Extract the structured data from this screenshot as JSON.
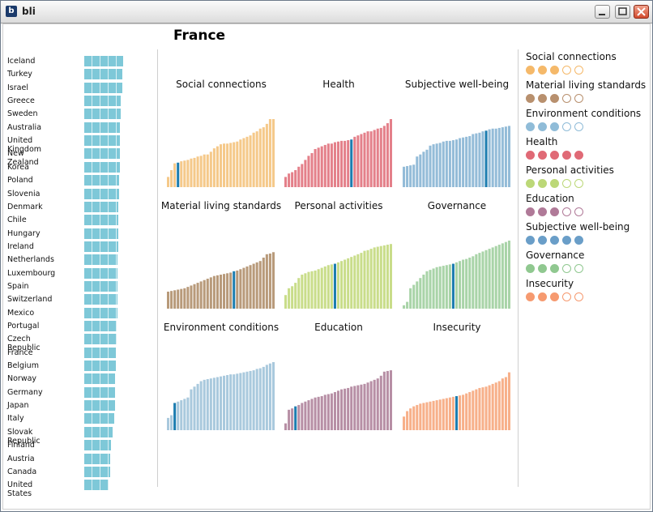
{
  "window": {
    "title": "bli",
    "buttons": [
      "minimize",
      "maximize",
      "close"
    ]
  },
  "selected_country": "France",
  "countries": [
    {
      "name": "Iceland",
      "score": 1.0
    },
    {
      "name": "Turkey",
      "score": 0.98
    },
    {
      "name": "Israel",
      "score": 0.97
    },
    {
      "name": "Greece",
      "score": 0.94
    },
    {
      "name": "Sweden",
      "score": 0.93
    },
    {
      "name": "Australia",
      "score": 0.92
    },
    {
      "name": "United Kingdom",
      "score": 0.92
    },
    {
      "name": "New Zealand",
      "score": 0.91
    },
    {
      "name": "Korea",
      "score": 0.91
    },
    {
      "name": "Poland",
      "score": 0.9
    },
    {
      "name": "Slovenia",
      "score": 0.89
    },
    {
      "name": "Denmark",
      "score": 0.88
    },
    {
      "name": "Chile",
      "score": 0.88
    },
    {
      "name": "Hungary",
      "score": 0.87
    },
    {
      "name": "Ireland",
      "score": 0.87
    },
    {
      "name": "Netherlands",
      "score": 0.86
    },
    {
      "name": "Luxembourg",
      "score": 0.86
    },
    {
      "name": "Spain",
      "score": 0.85
    },
    {
      "name": "Switzerland",
      "score": 0.85
    },
    {
      "name": "Mexico",
      "score": 0.85
    },
    {
      "name": "Portugal",
      "score": 0.84
    },
    {
      "name": "Czech Republic",
      "score": 0.84
    },
    {
      "name": "France",
      "score": 0.82
    },
    {
      "name": "Belgium",
      "score": 0.81
    },
    {
      "name": "Norway",
      "score": 0.8
    },
    {
      "name": "Germany",
      "score": 0.79
    },
    {
      "name": "Japan",
      "score": 0.79
    },
    {
      "name": "Italy",
      "score": 0.78
    },
    {
      "name": "Slovak Republic",
      "score": 0.73
    },
    {
      "name": "Finland",
      "score": 0.68
    },
    {
      "name": "Austria",
      "score": 0.67
    },
    {
      "name": "Canada",
      "score": 0.67
    },
    {
      "name": "United States",
      "score": 0.63
    }
  ],
  "chart_data": [
    {
      "type": "bar",
      "title": "Social connections",
      "color": "#f5c98a",
      "highlight_index": 3,
      "values": [
        0.15,
        0.25,
        0.35,
        0.36,
        0.38,
        0.39,
        0.4,
        0.42,
        0.43,
        0.45,
        0.46,
        0.48,
        0.48,
        0.52,
        0.57,
        0.6,
        0.63,
        0.64,
        0.64,
        0.65,
        0.66,
        0.67,
        0.7,
        0.72,
        0.74,
        0.76,
        0.8,
        0.82,
        0.86,
        0.88,
        0.93,
        1.0,
        1.0
      ]
    },
    {
      "type": "bar",
      "title": "Health",
      "color": "#e4808a",
      "highlight_index": 20,
      "values": [
        0.15,
        0.2,
        0.22,
        0.25,
        0.3,
        0.34,
        0.4,
        0.46,
        0.5,
        0.56,
        0.58,
        0.6,
        0.62,
        0.64,
        0.64,
        0.66,
        0.67,
        0.68,
        0.68,
        0.69,
        0.7,
        0.74,
        0.76,
        0.78,
        0.8,
        0.82,
        0.82,
        0.84,
        0.86,
        0.87,
        0.9,
        0.94,
        1.0
      ]
    },
    {
      "type": "bar",
      "title": "Subjective well-being",
      "color": "#94bcd8",
      "highlight_index": 25,
      "values": [
        0.3,
        0.31,
        0.32,
        0.33,
        0.45,
        0.48,
        0.52,
        0.55,
        0.61,
        0.63,
        0.64,
        0.65,
        0.67,
        0.68,
        0.68,
        0.69,
        0.7,
        0.72,
        0.73,
        0.74,
        0.75,
        0.78,
        0.79,
        0.8,
        0.82,
        0.83,
        0.85,
        0.86,
        0.86,
        0.87,
        0.88,
        0.89,
        0.9
      ]
    },
    {
      "type": "bar",
      "title": "Material living standards",
      "color": "#b89a7a",
      "highlight_index": 20,
      "values": [
        0.25,
        0.26,
        0.27,
        0.28,
        0.29,
        0.3,
        0.32,
        0.34,
        0.36,
        0.38,
        0.4,
        0.42,
        0.44,
        0.46,
        0.48,
        0.49,
        0.5,
        0.51,
        0.52,
        0.53,
        0.55,
        0.56,
        0.58,
        0.6,
        0.62,
        0.64,
        0.66,
        0.68,
        0.7,
        0.75,
        0.8,
        0.81,
        0.83
      ]
    },
    {
      "type": "bar",
      "title": "Personal activities",
      "color": "#c9dd8a",
      "highlight_index": 15,
      "values": [
        0.2,
        0.3,
        0.33,
        0.38,
        0.45,
        0.5,
        0.52,
        0.54,
        0.55,
        0.56,
        0.58,
        0.6,
        0.62,
        0.64,
        0.65,
        0.66,
        0.68,
        0.7,
        0.72,
        0.74,
        0.76,
        0.78,
        0.8,
        0.82,
        0.85,
        0.86,
        0.88,
        0.9,
        0.91,
        0.92,
        0.93,
        0.94,
        0.95
      ]
    },
    {
      "type": "bar",
      "title": "Governance",
      "color": "#a9d4a8",
      "highlight_index": 15,
      "values": [
        0.05,
        0.1,
        0.3,
        0.35,
        0.4,
        0.45,
        0.5,
        0.55,
        0.57,
        0.59,
        0.61,
        0.62,
        0.63,
        0.64,
        0.65,
        0.66,
        0.68,
        0.7,
        0.72,
        0.73,
        0.75,
        0.77,
        0.8,
        0.82,
        0.84,
        0.86,
        0.88,
        0.9,
        0.92,
        0.94,
        0.96,
        0.98,
        1.0
      ]
    },
    {
      "type": "bar",
      "title": "Environment conditions",
      "color": "#a9c9dd",
      "highlight_index": 2,
      "values": [
        0.18,
        0.22,
        0.4,
        0.42,
        0.44,
        0.46,
        0.48,
        0.6,
        0.64,
        0.68,
        0.72,
        0.74,
        0.75,
        0.76,
        0.77,
        0.78,
        0.79,
        0.8,
        0.81,
        0.82,
        0.82,
        0.83,
        0.84,
        0.85,
        0.86,
        0.87,
        0.88,
        0.9,
        0.91,
        0.93,
        0.96,
        0.98,
        1.0
      ]
    },
    {
      "type": "bar",
      "title": "Education",
      "color": "#b78fa5",
      "highlight_index": 3,
      "values": [
        0.1,
        0.3,
        0.32,
        0.35,
        0.37,
        0.4,
        0.42,
        0.44,
        0.46,
        0.48,
        0.49,
        0.5,
        0.52,
        0.53,
        0.54,
        0.56,
        0.58,
        0.6,
        0.61,
        0.62,
        0.64,
        0.65,
        0.66,
        0.67,
        0.68,
        0.7,
        0.72,
        0.74,
        0.76,
        0.8,
        0.86,
        0.87,
        0.88
      ]
    },
    {
      "type": "bar",
      "title": "Insecurity",
      "color": "#f7b08a",
      "highlight_index": 16,
      "values": [
        0.2,
        0.28,
        0.32,
        0.35,
        0.37,
        0.39,
        0.4,
        0.41,
        0.42,
        0.43,
        0.44,
        0.45,
        0.46,
        0.47,
        0.48,
        0.49,
        0.5,
        0.51,
        0.52,
        0.54,
        0.56,
        0.58,
        0.6,
        0.62,
        0.63,
        0.64,
        0.66,
        0.68,
        0.7,
        0.72,
        0.76,
        0.78,
        0.85
      ]
    }
  ],
  "legend": [
    {
      "label": "Social connections",
      "color": "#f5b96a",
      "filled": 3,
      "total": 5
    },
    {
      "label": "Material living standards",
      "color": "#b8906e",
      "filled": 3,
      "total": 5
    },
    {
      "label": "Environment conditions",
      "color": "#90bcd8",
      "filled": 3,
      "total": 5
    },
    {
      "label": "Health",
      "color": "#e06a76",
      "filled": 5,
      "total": 5
    },
    {
      "label": "Personal activities",
      "color": "#bcd878",
      "filled": 3,
      "total": 5
    },
    {
      "label": "Education",
      "color": "#b07a98",
      "filled": 3,
      "total": 5
    },
    {
      "label": "Subjective well-being",
      "color": "#6a9ec8",
      "filled": 5,
      "total": 5
    },
    {
      "label": "Governance",
      "color": "#90c890",
      "filled": 3,
      "total": 5
    },
    {
      "label": "Insecurity",
      "color": "#f69a70",
      "filled": 3,
      "total": 5
    }
  ]
}
